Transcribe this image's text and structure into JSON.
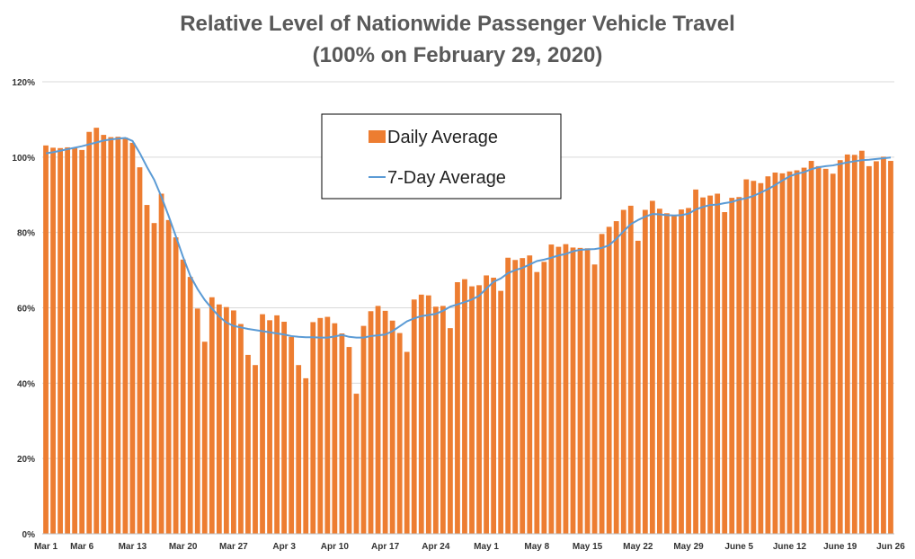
{
  "chart_data": {
    "type": "bar",
    "title_lines": [
      "Relative Level of Nationwide Passenger Vehicle Travel",
      "(100% on February 29, 2020)"
    ],
    "xlabel": "",
    "ylabel": "",
    "ylim": [
      0,
      120
    ],
    "y_ticks": [
      0,
      20,
      40,
      60,
      80,
      100,
      120
    ],
    "y_tick_format": "%",
    "x_ticks": [
      {
        "label": "Mar 1",
        "day_index": 0
      },
      {
        "label": "Mar 6",
        "day_index": 5
      },
      {
        "label": "Mar 13",
        "day_index": 12
      },
      {
        "label": "Mar 20",
        "day_index": 19
      },
      {
        "label": "Mar 27",
        "day_index": 26
      },
      {
        "label": "Apr 3",
        "day_index": 33
      },
      {
        "label": "Apr 10",
        "day_index": 40
      },
      {
        "label": "Apr 17",
        "day_index": 47
      },
      {
        "label": "Apr 24",
        "day_index": 54
      },
      {
        "label": "May 1",
        "day_index": 61
      },
      {
        "label": "May 8",
        "day_index": 68
      },
      {
        "label": "May 15",
        "day_index": 75
      },
      {
        "label": "May 22",
        "day_index": 82
      },
      {
        "label": "May 29",
        "day_index": 89
      },
      {
        "label": "June 5",
        "day_index": 96
      },
      {
        "label": "June 12",
        "day_index": 103
      },
      {
        "label": "June 19",
        "day_index": 110
      },
      {
        "label": "Jun 26",
        "day_index": 117
      }
    ],
    "grid": true,
    "legend_position": "top-center",
    "colors": {
      "bar": "#ED7D31",
      "line": "#5B9BD5",
      "grid": "#D9D9D9",
      "axis": "#BFBFBF"
    },
    "series": [
      {
        "name": "Daily Average",
        "type": "bar",
        "values": [
          103.1,
          102.5,
          102.4,
          102.6,
          102.4,
          101.9,
          106.7,
          107.8,
          105.9,
          105.3,
          105.4,
          105.2,
          103.8,
          97.3,
          87.3,
          82.5,
          90.3,
          83.3,
          78.7,
          72.8,
          68.2,
          59.8,
          51.0,
          62.8,
          60.9,
          60.2,
          59.3,
          55.7,
          47.5,
          44.8,
          58.3,
          56.7,
          58.0,
          56.3,
          52.3,
          44.8,
          41.3,
          56.2,
          57.3,
          57.6,
          55.9,
          53.2,
          49.6,
          37.2,
          55.2,
          59.1,
          60.5,
          59.2,
          56.6,
          53.3,
          48.3,
          62.2,
          63.5,
          63.3,
          60.3,
          60.5,
          54.6,
          66.8,
          67.6,
          65.7,
          66.0,
          68.6,
          68.0,
          64.5,
          73.3,
          72.7,
          73.2,
          73.9,
          69.5,
          72.2,
          76.8,
          76.2,
          76.9,
          76.0,
          75.9,
          75.8,
          71.5,
          79.6,
          81.5,
          83.0,
          86.0,
          87.1,
          77.8,
          86.0,
          88.4,
          86.3,
          85.1,
          84.7,
          86.1,
          86.5,
          91.4,
          89.3,
          89.8,
          90.3,
          85.4,
          89.2,
          89.4,
          94.1,
          93.7,
          93.1,
          94.9,
          95.9,
          95.7,
          96.2,
          96.5,
          97.2,
          99.0,
          97.6,
          96.9,
          95.6,
          99.2,
          100.7,
          100.6,
          101.7,
          97.6,
          98.9,
          100.1,
          99.0
        ]
      },
      {
        "name": "7-Day Average",
        "type": "line",
        "values": [
          101.0,
          101.3,
          101.7,
          102.1,
          102.5,
          102.9,
          103.4,
          103.9,
          104.4,
          104.7,
          104.9,
          105.1,
          104.3,
          101.1,
          97.4,
          94.0,
          89.5,
          84.4,
          79.0,
          73.5,
          68.5,
          65.0,
          62.1,
          59.8,
          57.7,
          56.1,
          55.2,
          54.8,
          54.4,
          54.1,
          53.8,
          53.5,
          53.2,
          52.9,
          52.5,
          52.3,
          52.2,
          52.2,
          52.1,
          52.1,
          52.4,
          52.8,
          52.3,
          52.1,
          52.1,
          52.5,
          52.7,
          52.9,
          53.8,
          55.1,
          56.4,
          57.2,
          57.8,
          58.1,
          58.4,
          59.2,
          60.3,
          60.9,
          61.5,
          62.2,
          63.2,
          65.1,
          66.9,
          67.8,
          69.2,
          70.0,
          70.6,
          71.5,
          72.4,
          72.8,
          73.3,
          73.9,
          74.3,
          75.0,
          75.4,
          75.5,
          75.6,
          75.9,
          76.6,
          78.3,
          80.3,
          82.2,
          83.3,
          84.2,
          84.9,
          84.8,
          84.6,
          84.5,
          84.6,
          85.0,
          86.1,
          86.8,
          87.3,
          87.4,
          87.8,
          88.1,
          88.7,
          89.1,
          89.7,
          90.6,
          91.5,
          92.6,
          93.8,
          94.9,
          95.6,
          96.0,
          96.8,
          97.3,
          97.6,
          97.8,
          98.2,
          98.6,
          98.9,
          99.2,
          99.3,
          99.5,
          99.7,
          99.9
        ]
      }
    ]
  }
}
